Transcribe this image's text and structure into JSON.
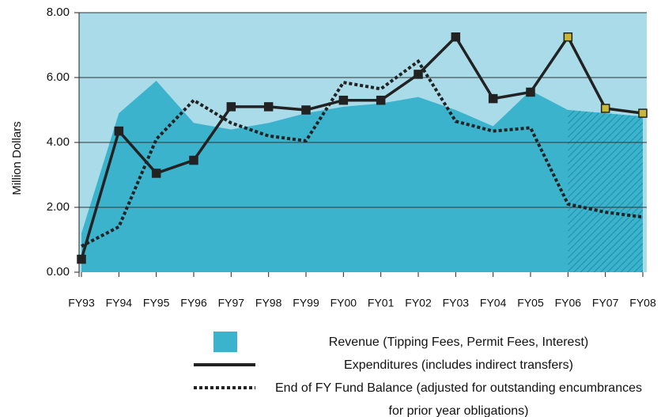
{
  "chart_data": {
    "type": "line",
    "y_axis_label": "Million Dollars",
    "categories": [
      "FY93",
      "FY94",
      "FY95",
      "FY96",
      "FY97",
      "FY98",
      "FY99",
      "FY00",
      "FY01",
      "FY02",
      "FY03",
      "FY04",
      "FY05",
      "FY06",
      "FY07",
      "FY08"
    ],
    "ylim": [
      0,
      8
    ],
    "yticks": [
      {
        "value": 0,
        "label": "0.00"
      },
      {
        "value": 2,
        "label": "2.00"
      },
      {
        "value": 4,
        "label": "4.00"
      },
      {
        "value": 6,
        "label": "6.00"
      },
      {
        "value": 8,
        "label": "8.00"
      }
    ],
    "grid": true,
    "background_color": "#a9dbe8",
    "hatch_from": "FY06",
    "series": [
      {
        "name": "Revenue (Tipping Fees, Permit Fees, Interest)",
        "color": "#3bb3cd",
        "style": "area",
        "values": [
          1.2,
          4.9,
          5.9,
          4.6,
          4.4,
          4.6,
          4.9,
          5.1,
          5.2,
          5.4,
          5.0,
          4.5,
          5.6,
          5.0,
          4.9,
          4.8
        ]
      },
      {
        "name": "Expenditures (includes indirect transfers)",
        "color": "#222222",
        "style": "solid",
        "values": [
          0.4,
          4.35,
          3.05,
          3.45,
          5.1,
          5.1,
          5.0,
          5.3,
          5.3,
          6.1,
          7.25,
          5.35,
          5.55,
          7.25,
          5.05,
          4.9
        ]
      },
      {
        "name": "End of FY Fund Balance (adjusted for outstanding encumbrances for prior year obligations)",
        "color": "#222222",
        "style": "dotted",
        "values": [
          0.8,
          1.4,
          4.1,
          5.3,
          4.6,
          4.2,
          4.05,
          5.85,
          5.65,
          6.5,
          4.65,
          4.35,
          4.45,
          2.1,
          1.85,
          1.7
        ]
      }
    ]
  }
}
